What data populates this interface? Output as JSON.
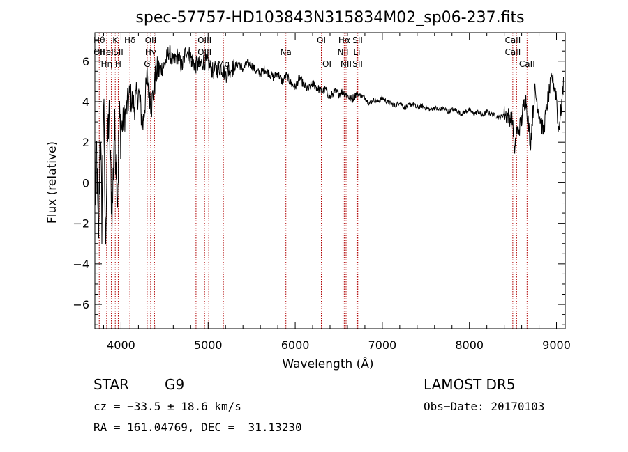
{
  "chart_data": {
    "type": "line",
    "title": "spec-57757-HD103843N315834M02_sp06-237.fits",
    "xlabel": "Wavelength (Å)",
    "ylabel": "Flux (relative)",
    "xlim": [
      3700,
      9100
    ],
    "ylim": [
      -7.2,
      7.4
    ],
    "xticks": [
      4000,
      5000,
      6000,
      7000,
      8000,
      9000
    ],
    "yticks": [
      -6,
      -4,
      -2,
      0,
      2,
      4,
      6
    ],
    "grid": false,
    "series": [
      {
        "color": "#000000",
        "x": [
          3700,
          3720,
          3740,
          3760,
          3780,
          3800,
          3820,
          3840,
          3860,
          3880,
          3900,
          3920,
          3940,
          3960,
          3980,
          4000,
          4050,
          4100,
          4150,
          4200,
          4250,
          4300,
          4350,
          4400,
          4450,
          4500,
          4550,
          4600,
          4650,
          4700,
          4750,
          4800,
          4850,
          4900,
          4950,
          5000,
          5050,
          5100,
          5150,
          5200,
          5250,
          5300,
          5350,
          5400,
          5450,
          5500,
          5550,
          5600,
          5650,
          5700,
          5750,
          5800,
          5850,
          5900,
          5950,
          6000,
          6050,
          6100,
          6150,
          6200,
          6250,
          6300,
          6350,
          6400,
          6450,
          6500,
          6550,
          6600,
          6650,
          6700,
          6750,
          6800,
          6850,
          6900,
          6950,
          7000,
          7050,
          7100,
          7150,
          7200,
          7250,
          7300,
          7350,
          7400,
          7450,
          7500,
          7550,
          7600,
          7650,
          7700,
          7750,
          7800,
          7850,
          7900,
          7950,
          8000,
          8050,
          8100,
          8150,
          8200,
          8250,
          8300,
          8350,
          8400,
          8450,
          8500,
          8520,
          8540,
          8560,
          8600,
          8620,
          8650,
          8700,
          8750,
          8800,
          8850,
          8900,
          8950,
          9000,
          9020,
          9050,
          9080
        ],
        "y": [
          -1.0,
          1.5,
          -3.5,
          3.0,
          -1.8,
          4.2,
          -2.8,
          1.2,
          3.5,
          0.5,
          -1.5,
          2.5,
          1.8,
          -0.5,
          3.0,
          2.6,
          3.4,
          4.3,
          3.8,
          4.5,
          2.8,
          5.2,
          3.8,
          5.4,
          5.6,
          5.8,
          6.5,
          5.9,
          6.3,
          5.7,
          6.6,
          6.2,
          5.8,
          5.8,
          6.0,
          5.9,
          5.5,
          5.6,
          5.7,
          5.3,
          5.6,
          5.7,
          5.9,
          5.6,
          5.9,
          5.8,
          5.5,
          5.4,
          5.6,
          5.4,
          5.2,
          5.4,
          5.0,
          5.3,
          4.9,
          4.7,
          5.2,
          4.8,
          4.6,
          4.9,
          4.7,
          4.5,
          4.6,
          4.2,
          4.5,
          4.4,
          4.5,
          4.3,
          4.1,
          4.4,
          4.3,
          4.2,
          3.9,
          4.1,
          4.0,
          4.2,
          4.0,
          3.9,
          3.8,
          4.0,
          3.7,
          3.8,
          3.9,
          3.7,
          3.8,
          3.7,
          3.6,
          3.7,
          3.6,
          3.7,
          3.5,
          3.6,
          3.6,
          3.4,
          3.5,
          3.6,
          3.4,
          3.5,
          3.3,
          3.5,
          3.4,
          3.3,
          3.2,
          3.4,
          3.3,
          3.0,
          1.3,
          2.6,
          2.5,
          3.1,
          3.8,
          4.1,
          1.9,
          4.6,
          3.4,
          2.5,
          4.1,
          5.2,
          4.3,
          2.6,
          3.5,
          4.9
        ]
      }
    ],
    "lines": [
      {
        "wl": 3750,
        "labels": [
          "Hθ",
          "OII"
        ],
        "dy": [
          0,
          1
        ]
      },
      {
        "wl": 3835,
        "labels": [
          "HeI",
          "Hη"
        ],
        "dy": [
          1,
          2
        ]
      },
      {
        "wl": 3889,
        "labels": [],
        "dy": []
      },
      {
        "wl": 3934,
        "labels": [
          "K"
        ],
        "dy": [
          0
        ]
      },
      {
        "wl": 3968,
        "labels": [
          "SII",
          "H"
        ],
        "dy": [
          1,
          2
        ]
      },
      {
        "wl": 4102,
        "labels": [
          "Hδ"
        ],
        "dy": [
          0
        ]
      },
      {
        "wl": 4300,
        "labels": [
          "G"
        ],
        "dy": [
          2
        ]
      },
      {
        "wl": 4340,
        "labels": [
          "OII",
          "Hγ"
        ],
        "dy": [
          0,
          1
        ]
      },
      {
        "wl": 4384,
        "labels": [],
        "dy": []
      },
      {
        "wl": 4861,
        "labels": [
          "Hβ"
        ],
        "dy": [
          2
        ]
      },
      {
        "wl": 4959,
        "labels": [
          "OIII",
          "OIII"
        ],
        "dy": [
          0,
          1
        ]
      },
      {
        "wl": 5007,
        "labels": [],
        "dy": []
      },
      {
        "wl": 5175,
        "labels": [
          "Mg"
        ],
        "dy": [
          2
        ]
      },
      {
        "wl": 5893,
        "labels": [
          "Na"
        ],
        "dy": [
          1
        ]
      },
      {
        "wl": 6300,
        "labels": [
          "OI"
        ],
        "dy": [
          0
        ]
      },
      {
        "wl": 6364,
        "labels": [
          "OI"
        ],
        "dy": [
          2
        ]
      },
      {
        "wl": 6548,
        "labels": [
          "NII"
        ],
        "dy": [
          1
        ]
      },
      {
        "wl": 6563,
        "labels": [
          "Hα"
        ],
        "dy": [
          0
        ]
      },
      {
        "wl": 6584,
        "labels": [
          "NII"
        ],
        "dy": [
          2
        ]
      },
      {
        "wl": 6708,
        "labels": [
          "Li"
        ],
        "dy": [
          1
        ]
      },
      {
        "wl": 6717,
        "labels": [
          "SII",
          "SII"
        ],
        "dy": [
          0,
          2
        ]
      },
      {
        "wl": 6731,
        "labels": [],
        "dy": []
      },
      {
        "wl": 8498,
        "labels": [
          "CaII",
          "CaII"
        ],
        "dy": [
          0,
          1
        ]
      },
      {
        "wl": 8542,
        "labels": [],
        "dy": []
      },
      {
        "wl": 8662,
        "labels": [
          "CaII"
        ],
        "dy": [
          2
        ]
      }
    ]
  },
  "info": {
    "class": "STAR",
    "subclass": "G9",
    "survey": "LAMOST DR5",
    "cz": "cz = −33.5 ± 18.6 km/s",
    "obsdate": "Obs−Date: 20170103",
    "radec": "RA = 161.04769, DEC =  31.13230"
  }
}
